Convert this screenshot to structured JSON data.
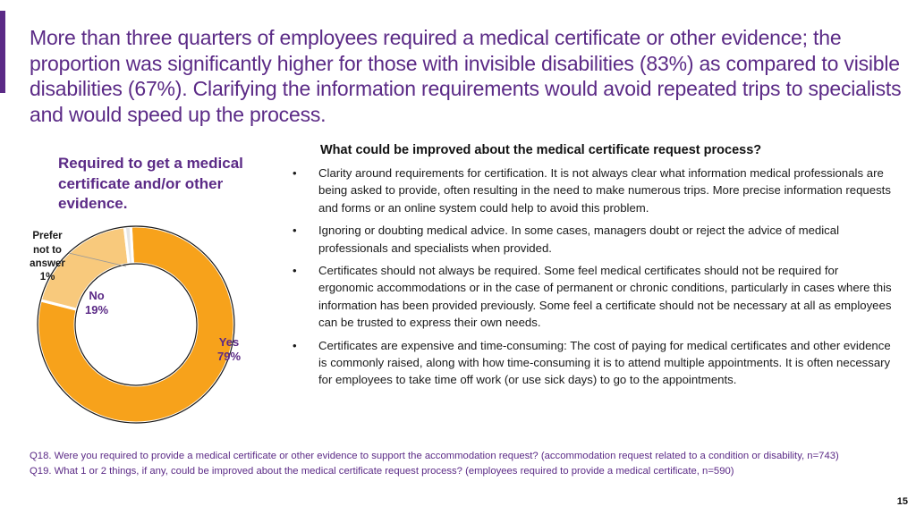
{
  "title": "More than three quarters of employees required a medical certificate or other evidence; the proportion was significantly higher for those with invisible disabilities (83%) as compared to visible disabilities (67%). Clarifying the information requirements would avoid repeated trips to specialists and would speed up the process.",
  "chart_data": {
    "type": "pie",
    "title": "Required to get a medical certificate and/or other evidence.",
    "categories": [
      "Yes",
      "No",
      "Prefer not to answer"
    ],
    "values": [
      79,
      19,
      1
    ],
    "labels": [
      "Yes\n79%",
      "No\n19%",
      "Prefer not to answer 1%"
    ],
    "colors": [
      "#f7a21b",
      "#f8c97c",
      "#e6e6e6"
    ]
  },
  "chart_labels": {
    "yes_name": "Yes",
    "yes_pct": "79%",
    "no_name": "No",
    "no_pct": "19%",
    "prefer_lines": [
      "Prefer",
      "not to",
      "answer",
      "1%"
    ]
  },
  "improvements": {
    "heading": "What could be improved about the medical certificate request process?",
    "bullet": "•",
    "items": [
      "Clarity around requirements for certification. It is not always clear what information medical professionals are being asked to provide, often resulting in the need to make numerous trips. More precise information requests and forms or an online system could help to avoid this problem.",
      "Ignoring or doubting medical advice. In some cases, managers doubt or reject the advice of medical professionals and specialists when provided.",
      "Certificates should not always be required. Some feel medical certificates should not be required for ergonomic accommodations or in the case of permanent or chronic conditions, particularly in cases where this information has been provided previously. Some feel a certificate should not be necessary at all as employees can be trusted to express their own needs.",
      "Certificates are expensive and time-consuming: The cost of paying for medical certificates and other evidence is commonly raised, along with how time-consuming it is to attend multiple appointments. It is often necessary for employees to take time off work (or use sick days) to go to the appointments."
    ]
  },
  "footnotes": {
    "q18": "Q18. Were you required to provide a medical certificate or other evidence to support the accommodation request? (accommodation request related to a condition or disability, n=743)",
    "q19": "Q19. What 1 or 2 things, if any, could be improved about the medical certificate request process? (employees required to provide a medical certificate, n=590)"
  },
  "page_number": "15",
  "colors": {
    "accent": "#5b2a86",
    "yes": "#f7a21b",
    "no": "#f8c97c",
    "prefer": "#e6e6e6"
  }
}
